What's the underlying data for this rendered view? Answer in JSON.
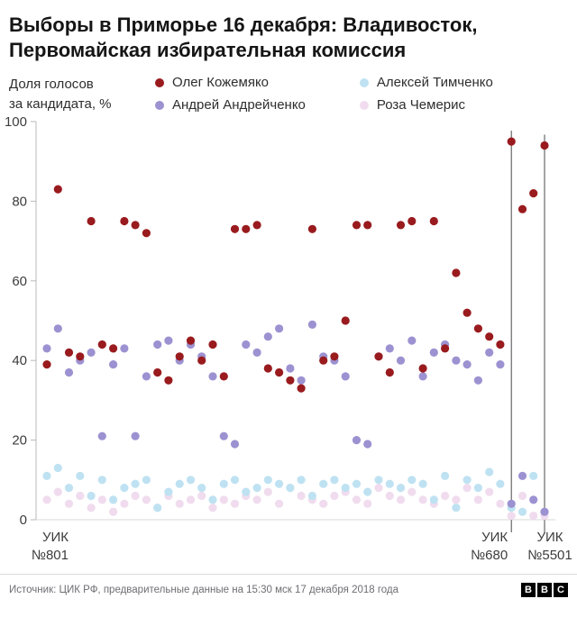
{
  "chart_data": {
    "type": "scatter",
    "title": "Выборы в Приморье 16 декабря: Владивосток, Первомайская избирательная комиссия",
    "ylabel": "Доля голосов за кандидата, %",
    "ylabel_lines": [
      "Доля голосов",
      "за кандидата, %"
    ],
    "xlabel": "",
    "ylim": [
      0,
      100
    ],
    "yticks": [
      0,
      20,
      40,
      60,
      80,
      100
    ],
    "grid": false,
    "legend_position": "top",
    "series": [
      {
        "name": "Олег Кожемяко",
        "color": "#991b1e",
        "values": [
          39,
          83,
          42,
          41,
          75,
          44,
          43,
          75,
          74,
          72,
          37,
          35,
          41,
          45,
          40,
          44,
          36,
          73,
          73,
          74,
          38,
          37,
          35,
          33,
          73,
          40,
          41,
          50,
          74,
          74,
          41,
          37,
          74,
          75,
          38,
          75,
          43,
          62,
          52,
          48,
          46,
          44,
          95,
          78,
          82,
          94
        ]
      },
      {
        "name": "Андрей Андрейченко",
        "color": "#9c92d1",
        "values": [
          43,
          48,
          37,
          40,
          42,
          21,
          39,
          43,
          21,
          36,
          44,
          45,
          40,
          44,
          41,
          36,
          21,
          19,
          44,
          42,
          46,
          48,
          38,
          35,
          49,
          41,
          40,
          36,
          20,
          19,
          41,
          43,
          40,
          45,
          36,
          42,
          44,
          40,
          39,
          35,
          42,
          39,
          4,
          11,
          5,
          2
        ]
      },
      {
        "name": "Алексей Тимченко",
        "color": "#bfe2f2",
        "values": [
          11,
          13,
          8,
          11,
          6,
          10,
          5,
          8,
          9,
          10,
          3,
          7,
          9,
          10,
          8,
          5,
          9,
          10,
          7,
          8,
          10,
          9,
          8,
          10,
          6,
          9,
          10,
          8,
          9,
          7,
          10,
          9,
          8,
          10,
          9,
          5,
          11,
          3,
          10,
          8,
          12,
          9,
          3,
          2,
          11,
          2
        ]
      },
      {
        "name": "Роза Чемерис",
        "color": "#f0dcee",
        "values": [
          5,
          7,
          4,
          6,
          3,
          5,
          2,
          4,
          6,
          5,
          3,
          6,
          4,
          5,
          6,
          3,
          5,
          4,
          6,
          5,
          7,
          4,
          8,
          6,
          5,
          4,
          6,
          7,
          5,
          4,
          8,
          6,
          5,
          7,
          5,
          4,
          6,
          5,
          8,
          5,
          7,
          4,
          1,
          6,
          1,
          1
        ]
      }
    ],
    "annotations": [
      {
        "lines": [
          "УИК",
          "№801"
        ],
        "index": 0,
        "marker_line": false
      },
      {
        "lines": [
          "УИК",
          "№680"
        ],
        "index": 42,
        "marker_line": true
      },
      {
        "lines": [
          "УИК",
          "№5501"
        ],
        "index": 45,
        "marker_line": true
      }
    ]
  },
  "footer": {
    "source": "Источник: ЦИК РФ, предварительные данные на 15:30 мск 17 декабря 2018 года",
    "logo_letters": [
      "B",
      "B",
      "C"
    ]
  }
}
